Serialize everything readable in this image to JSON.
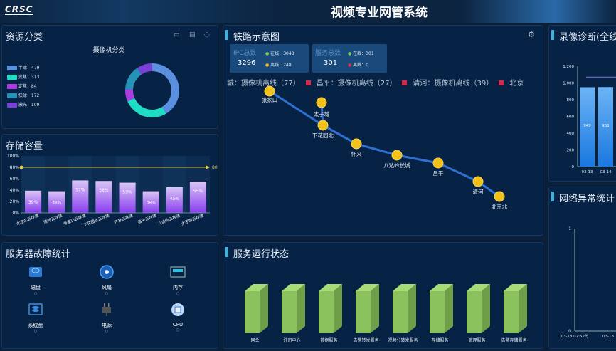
{
  "header": {
    "logo": "CRSC",
    "title": "视频专业网管系统"
  },
  "resource": {
    "title": "资源分类",
    "chart_title": "摄像机分类",
    "icons": [
      "video-icon",
      "document-icon",
      "shield-icon"
    ],
    "items": [
      {
        "label": "半球：479",
        "value": 479,
        "color": "#5b8fe0"
      },
      {
        "label": "变焦：313",
        "value": 313,
        "color": "#1fdcc4"
      },
      {
        "label": "定焦：84",
        "value": 84,
        "color": "#a83de0"
      },
      {
        "label": "快球：172",
        "value": 172,
        "color": "#2592b8"
      },
      {
        "label": "激光：109",
        "value": 109,
        "color": "#7b40d8"
      }
    ]
  },
  "storage": {
    "title": "存储容量",
    "chart_data": {
      "type": "bar",
      "categories": [
        "北京北云存储",
        "清河云存储",
        "张家口云存储",
        "下花园北云存储",
        "怀来云存储",
        "昌平云存储",
        "八达岭云存储",
        "太子城云存储"
      ],
      "values": [
        39,
        38,
        57,
        56,
        53,
        38,
        45,
        55
      ],
      "labels": [
        "39%",
        "38%",
        "57%",
        "56%",
        "53%",
        "38%",
        "45%",
        "55%"
      ],
      "yticks": [
        "0%",
        "20%",
        "40%",
        "60%",
        "80%",
        "100%"
      ],
      "ylim": [
        0,
        100
      ],
      "markline": 80,
      "markline_label": "80"
    }
  },
  "rail": {
    "title": "铁路示意图",
    "ipc": {
      "label": "IPC总数",
      "total": "3296",
      "online_label": "在线：",
      "online": "3048",
      "offline_label": "离线：",
      "offline": "248"
    },
    "service": {
      "label": "服务总数",
      "total": "301",
      "online_label": "在线：",
      "online": "301",
      "offline_label": "离线：",
      "offline": "0"
    },
    "ticker": [
      "城：摄像机离线（77）",
      "昌平：摄像机离线（27）",
      "清河：摄像机离线（39）",
      "北京"
    ],
    "stations": [
      "张家口",
      "太子城",
      "下花园北",
      "怀来",
      "八达岭长城",
      "昌平",
      "清河",
      "北京北"
    ]
  },
  "recording": {
    "title": "录像诊断(全线",
    "chart_data": {
      "type": "bar",
      "categories": [
        "03-13",
        "03-14"
      ],
      "values": [
        949,
        951
      ],
      "labels": [
        "949",
        "951"
      ],
      "yticks": [
        "0",
        "200",
        "400",
        "600",
        "800",
        "1,000",
        "1,200"
      ],
      "ylim": [
        0,
        1200
      ],
      "line_value": 1070
    }
  },
  "faults": {
    "title": "服务器故障统计",
    "items": [
      {
        "label": "磁盘",
        "value": "0",
        "icon": "disk-icon"
      },
      {
        "label": "风扇",
        "value": "0",
        "icon": "fan-icon"
      },
      {
        "label": "内存",
        "value": "0",
        "icon": "memory-icon"
      },
      {
        "label": "系统盘",
        "value": "0",
        "icon": "system-disk-icon"
      },
      {
        "label": "电源",
        "value": "0",
        "icon": "power-plug-icon"
      },
      {
        "label": "CPU",
        "value": "0",
        "icon": "cpu-icon"
      }
    ]
  },
  "services": {
    "title": "服务运行状态",
    "items": [
      "网关",
      "注册中心",
      "数据服务",
      "告警转发服务",
      "视频分转发服务",
      "存储服务",
      "管理服务",
      "告警存储服务"
    ]
  },
  "network": {
    "title": "网络异常统计",
    "chart_data": {
      "type": "line",
      "yticks": [
        "0",
        "1"
      ],
      "ylim": [
        0,
        1
      ],
      "xticks": [
        "03-18 02:52分",
        "03-18"
      ]
    }
  }
}
